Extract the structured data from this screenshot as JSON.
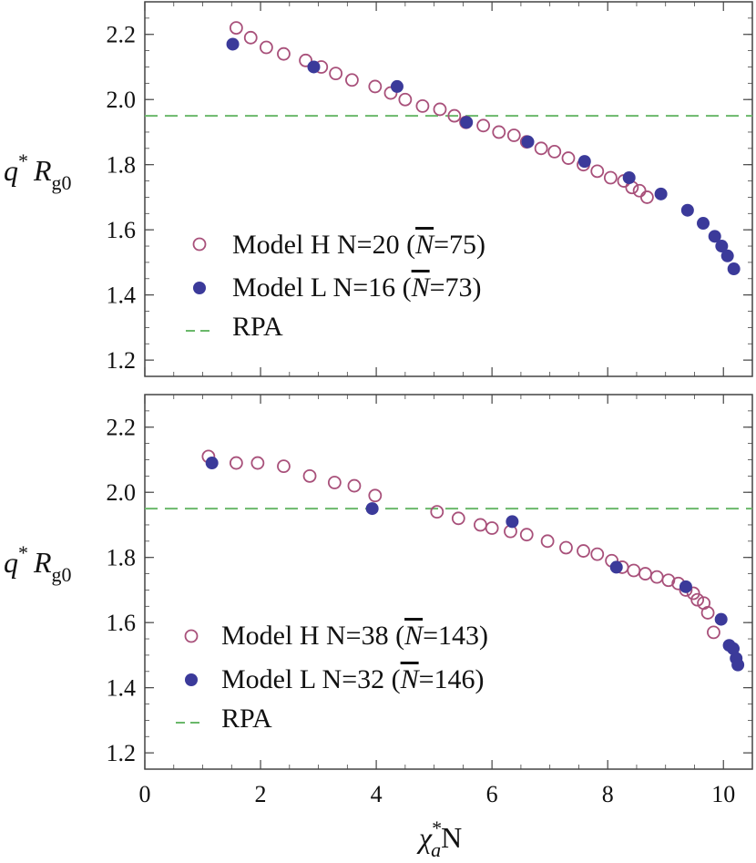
{
  "colors": {
    "open_marker": "#a8507a",
    "filled_marker": "#3b3a9a",
    "rpa_line": "#6ab86a",
    "frame": "#444444"
  },
  "chart_data": [
    {
      "type": "scatter",
      "panel": "top",
      "xlim": [
        0,
        10.5
      ],
      "ylim": [
        1.15,
        2.3
      ],
      "xticks": [
        0,
        2,
        4,
        6,
        8,
        10
      ],
      "yticks": [
        1.2,
        1.4,
        1.6,
        1.8,
        2.0,
        2.2
      ],
      "ytick_labels": [
        "1.2",
        "1.4",
        "1.6",
        "1.8",
        "2.0",
        "2.2"
      ],
      "ylabel": {
        "base": "q",
        "sup": "*",
        "var": "R",
        "sub": "g0"
      },
      "legend_position": "lower-left",
      "series": [
        {
          "name": "Model H",
          "label": "Model H  N=20 (",
          "nbar_symbol": "N",
          "label_tail": "=75)",
          "marker": "open",
          "x": [
            1.58,
            1.83,
            2.1,
            2.4,
            2.78,
            3.05,
            3.3,
            3.58,
            3.98,
            4.25,
            4.5,
            4.8,
            5.1,
            5.35,
            5.55,
            5.85,
            6.12,
            6.38,
            6.6,
            6.85,
            7.08,
            7.32,
            7.58,
            7.82,
            8.05,
            8.28,
            8.42,
            8.55,
            8.68
          ],
          "y": [
            2.22,
            2.19,
            2.16,
            2.14,
            2.12,
            2.1,
            2.08,
            2.06,
            2.04,
            2.02,
            2.0,
            1.98,
            1.97,
            1.95,
            1.93,
            1.92,
            1.9,
            1.89,
            1.87,
            1.85,
            1.84,
            1.82,
            1.8,
            1.78,
            1.76,
            1.75,
            1.73,
            1.72,
            1.7
          ]
        },
        {
          "name": "Model L",
          "label": "Model L  N=16 (",
          "nbar_symbol": "N",
          "label_tail": "=73)",
          "marker": "filled",
          "x": [
            1.52,
            2.92,
            4.36,
            5.56,
            6.62,
            7.6,
            8.37,
            8.92,
            9.38,
            9.65,
            9.85,
            9.97,
            10.07,
            10.18
          ],
          "y": [
            2.17,
            2.1,
            2.04,
            1.93,
            1.87,
            1.81,
            1.76,
            1.71,
            1.66,
            1.62,
            1.58,
            1.55,
            1.52,
            1.48
          ]
        }
      ],
      "reference_line": {
        "name": "RPA",
        "y": 1.95
      }
    },
    {
      "type": "scatter",
      "panel": "bottom",
      "xlim": [
        0,
        10.5
      ],
      "ylim": [
        1.15,
        2.3
      ],
      "xticks": [
        0,
        2,
        4,
        6,
        8,
        10
      ],
      "xtick_labels": [
        "0",
        "2",
        "4",
        "6",
        "8",
        "10"
      ],
      "yticks": [
        1.2,
        1.4,
        1.6,
        1.8,
        2.0,
        2.2
      ],
      "ytick_labels": [
        "1.2",
        "1.4",
        "1.6",
        "1.8",
        "2.0",
        "2.2"
      ],
      "ylabel": {
        "base": "q",
        "sup": "*",
        "var": "R",
        "sub": "g0"
      },
      "xlabel": {
        "base": "χ",
        "sup": "*",
        "sub": "a",
        "tail": "N"
      },
      "legend_position": "lower-left",
      "series": [
        {
          "name": "Model H",
          "label": "Model H  N=38 (",
          "nbar_symbol": "N",
          "label_tail": "=143)",
          "marker": "open",
          "x": [
            1.1,
            1.58,
            1.95,
            2.4,
            2.85,
            3.28,
            3.62,
            3.98,
            5.05,
            5.42,
            5.8,
            6.0,
            6.32,
            6.6,
            6.96,
            7.28,
            7.58,
            7.82,
            8.07,
            8.25,
            8.45,
            8.65,
            8.85,
            9.05,
            9.22,
            9.35,
            9.48,
            9.55,
            9.66,
            9.73,
            9.83
          ],
          "y": [
            2.11,
            2.09,
            2.09,
            2.08,
            2.05,
            2.03,
            2.02,
            1.99,
            1.94,
            1.92,
            1.9,
            1.89,
            1.88,
            1.87,
            1.85,
            1.83,
            1.82,
            1.81,
            1.79,
            1.77,
            1.76,
            1.75,
            1.74,
            1.73,
            1.72,
            1.7,
            1.69,
            1.67,
            1.66,
            1.63,
            1.57
          ]
        },
        {
          "name": "Model L",
          "label": "Model L  N=32 (",
          "nbar_symbol": "N",
          "label_tail": "=146)",
          "marker": "filled",
          "x": [
            1.16,
            3.93,
            6.35,
            8.15,
            9.35,
            9.96,
            10.1,
            10.17,
            10.22,
            10.25
          ],
          "y": [
            2.09,
            1.95,
            1.91,
            1.77,
            1.71,
            1.61,
            1.53,
            1.52,
            1.49,
            1.47
          ]
        }
      ],
      "reference_line": {
        "name": "RPA",
        "y": 1.95
      }
    }
  ]
}
